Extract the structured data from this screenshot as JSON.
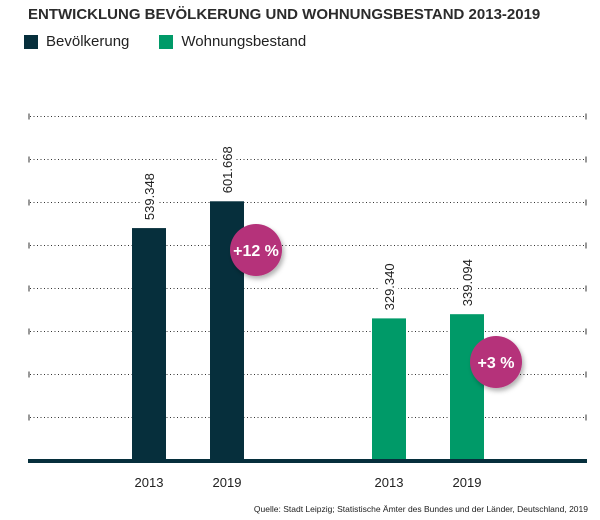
{
  "chart_data": {
    "type": "bar",
    "title": "ENTWICKLUNG BEVÖLKERUNG UND WOHNUNGSBESTAND 2013-2019",
    "xlabel": "",
    "ylabel": "",
    "ylim": [
      0,
      800000
    ],
    "grid": true,
    "legend_placement": "top-left",
    "groups": [
      {
        "series": "Bevölkerung",
        "categories": [
          "2013",
          "2019"
        ],
        "values": [
          539348,
          601668
        ],
        "labels": [
          "539.348",
          "601.668"
        ],
        "change": "+12 %"
      },
      {
        "series": "Wohnungsbestand",
        "categories": [
          "2013",
          "2019"
        ],
        "values": [
          329340,
          339094
        ],
        "labels": [
          "329.340",
          "339.094"
        ],
        "change": "+3 %"
      }
    ],
    "series": [
      {
        "name": "Bevölkerung",
        "color": "#062f3c"
      },
      {
        "name": "Wohnungsbestand",
        "color": "#009a68"
      }
    ],
    "badge_color": "#b5317a",
    "source": "Quelle: Stadt Leipzig; Statistische Ämter des Bundes und der Länder, Deutschland, 2019"
  }
}
